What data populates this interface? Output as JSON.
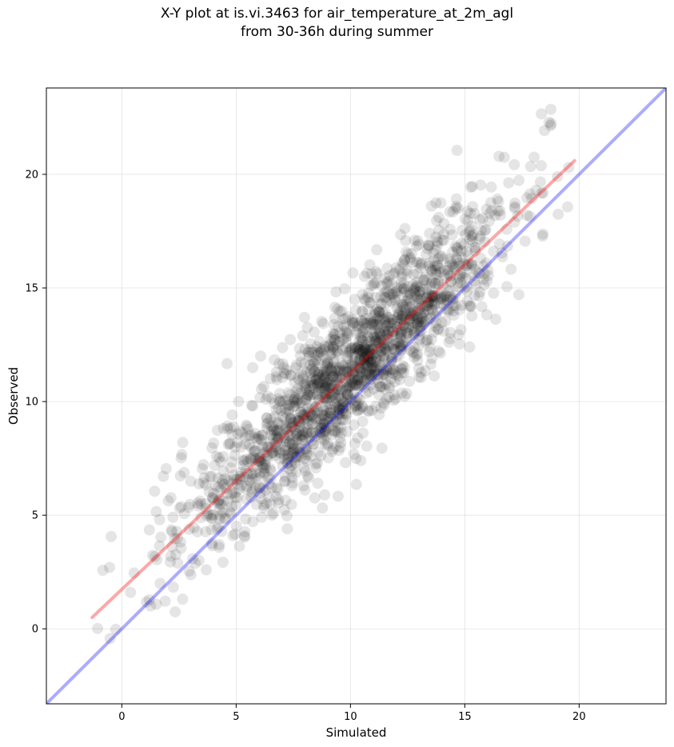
{
  "chart_data": {
    "type": "scatter",
    "title": [
      "X-Y plot at is.vi.3463 for air_temperature_at_2m_agl",
      "from 30-36h during summer"
    ],
    "xlabel": "Simulated",
    "ylabel": "Observed",
    "xlim": [
      -3.3,
      23.8
    ],
    "ylim": [
      -3.3,
      23.8
    ],
    "xticks": [
      0,
      5,
      10,
      15,
      20
    ],
    "yticks": [
      0,
      5,
      10,
      15,
      20
    ],
    "grid": true,
    "n_points": 1750,
    "point_color": "#000000",
    "point_alpha": 0.1,
    "identity_line": {
      "color": "#0000ff",
      "alpha": 0.33,
      "from": [
        -3.3,
        -3.3
      ],
      "to": [
        23.8,
        23.8
      ]
    },
    "regression_line": {
      "color": "#ff0000",
      "alpha": 0.35,
      "from": [
        -1.3,
        0.5
      ],
      "to": [
        19.8,
        20.6
      ]
    }
  }
}
